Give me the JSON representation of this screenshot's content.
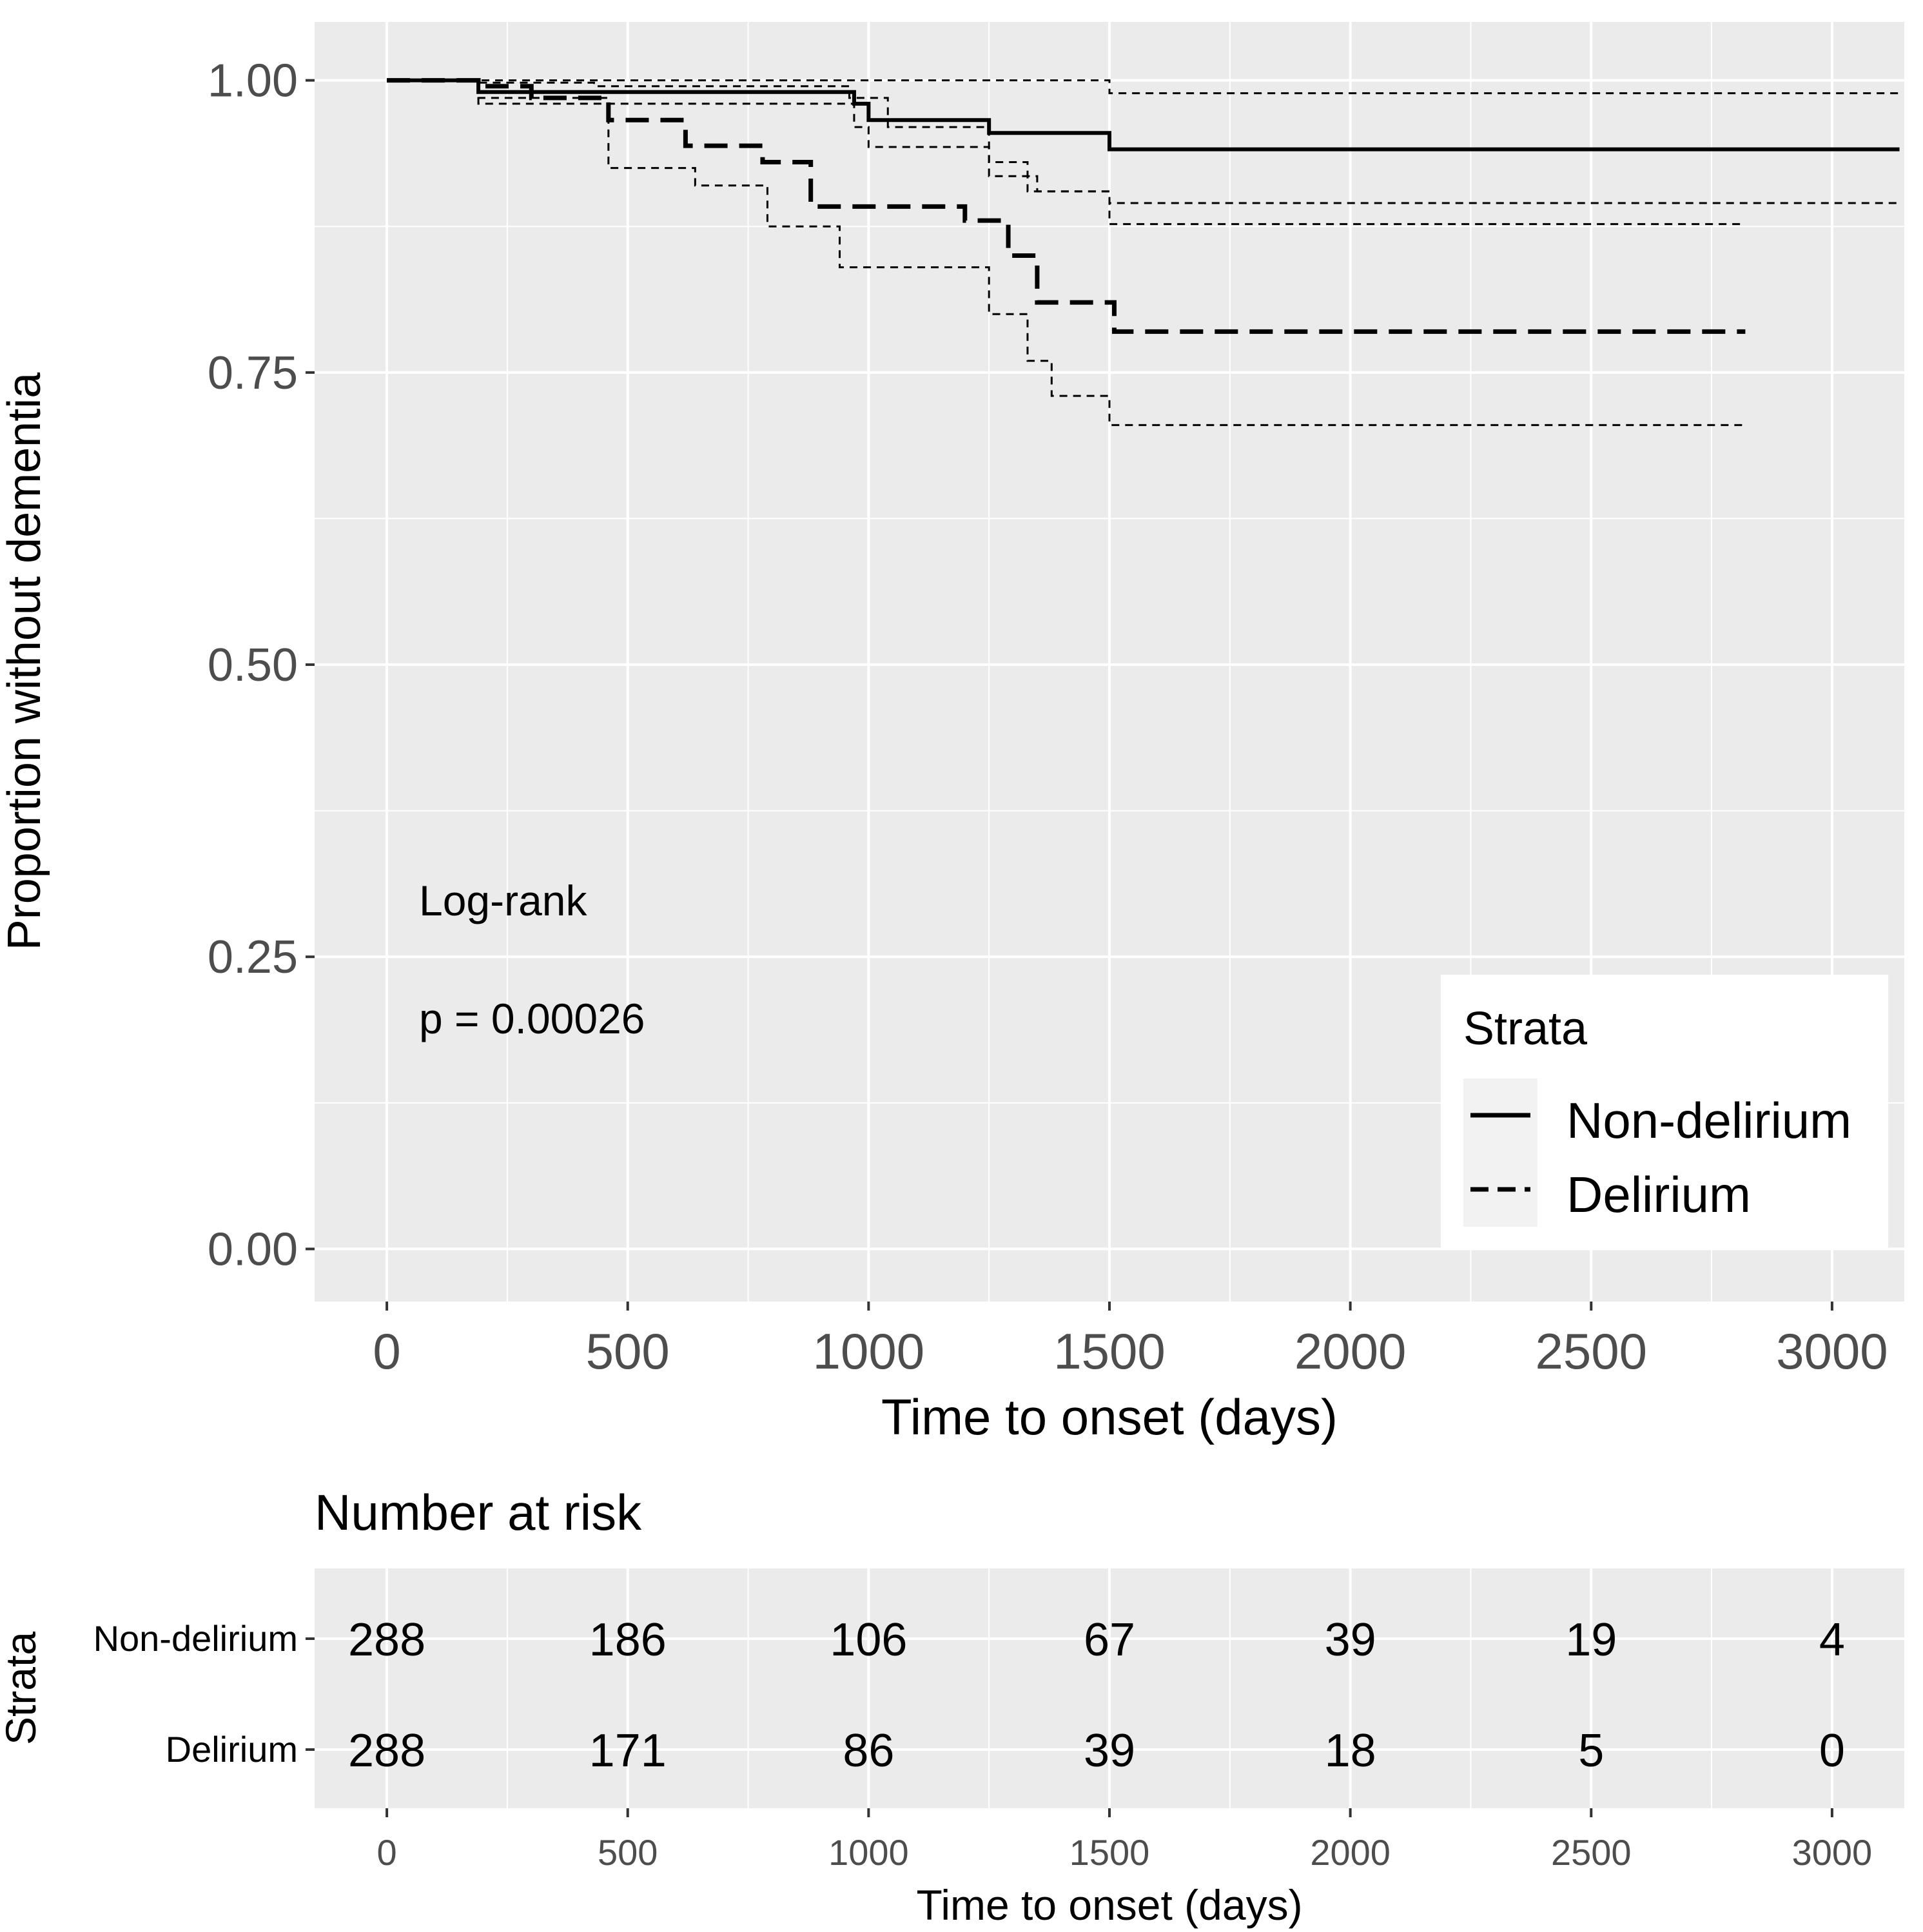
{
  "colors": {
    "panel": "#ebebeb",
    "grid": "#ffffff",
    "line": "#000000",
    "tick_text": "#4d4d4d",
    "legend_bg": "#ffffff"
  },
  "chart_data": [
    {
      "type": "line",
      "subtype": "kaplan-meier",
      "xlabel": "Time to onset (days)",
      "ylabel": "Proportion without dementia",
      "xlim": [
        -150,
        3150
      ],
      "ylim": [
        -0.045,
        1.05
      ],
      "xticks": [
        0,
        500,
        1000,
        1500,
        2000,
        2500,
        3000
      ],
      "xtick_labels": [
        "0",
        "500",
        "1000",
        "1500",
        "2000",
        "2500",
        "3000"
      ],
      "yticks": [
        0,
        0.25,
        0.5,
        0.75,
        1.0
      ],
      "ytick_labels": [
        "0.00",
        "0.25",
        "0.50",
        "0.75",
        "1.00"
      ],
      "annotation": {
        "line1": "Log-rank",
        "line2": "p = 0.00026"
      },
      "legend": {
        "title": "Strata",
        "entries": [
          "Non-delirium",
          "Delirium"
        ],
        "position": "bottom-right"
      },
      "series": [
        {
          "name": "Non-delirium",
          "style": "solid",
          "role": "estimate",
          "x": [
            0,
            190,
            970,
            1000,
            1250,
            1500,
            3140
          ],
          "y": [
            1.0,
            0.99,
            0.98,
            0.966,
            0.955,
            0.941,
            0.941
          ]
        },
        {
          "name": "Non-delirium upper CI",
          "style": "dotted",
          "role": "ci",
          "x": [
            0,
            200,
            1500,
            3140
          ],
          "y": [
            1.0,
            1.0,
            0.989,
            0.989
          ]
        },
        {
          "name": "Non-delirium lower CI",
          "style": "dotted",
          "role": "ci",
          "x": [
            0,
            190,
            970,
            1000,
            1250,
            1350,
            1500,
            3140
          ],
          "y": [
            1.0,
            0.98,
            0.96,
            0.943,
            0.918,
            0.905,
            0.895,
            0.895
          ]
        },
        {
          "name": "Delirium",
          "style": "dashed",
          "role": "estimate",
          "x": [
            0,
            190,
            300,
            460,
            620,
            780,
            880,
            1200,
            1290,
            1350,
            1510,
            2820
          ],
          "y": [
            1.0,
            0.995,
            0.985,
            0.966,
            0.944,
            0.93,
            0.892,
            0.88,
            0.85,
            0.81,
            0.785,
            0.785
          ]
        },
        {
          "name": "Delirium upper CI",
          "style": "dotted",
          "role": "ci",
          "x": [
            0,
            190,
            430,
            960,
            1040,
            1250,
            1330,
            1500,
            2820
          ],
          "y": [
            1.0,
            0.998,
            0.995,
            0.985,
            0.96,
            0.93,
            0.905,
            0.877,
            0.877
          ]
        },
        {
          "name": "Delirium lower CI",
          "style": "dotted",
          "role": "ci",
          "x": [
            0,
            190,
            460,
            640,
            790,
            940,
            1250,
            1330,
            1380,
            1500,
            2820
          ],
          "y": [
            1.0,
            0.985,
            0.925,
            0.91,
            0.875,
            0.84,
            0.8,
            0.76,
            0.73,
            0.705,
            0.705
          ]
        }
      ]
    },
    {
      "type": "table",
      "title": "Number at risk",
      "ylabel": "Strata",
      "xlabel": "Time to onset (days)",
      "times": [
        0,
        500,
        1000,
        1500,
        2000,
        2500,
        3000
      ],
      "time_labels": [
        "0",
        "500",
        "1000",
        "1500",
        "2000",
        "2500",
        "3000"
      ],
      "rows": [
        {
          "label": "Non-delirium",
          "values": [
            "288",
            "186",
            "106",
            "67",
            "39",
            "19",
            "4"
          ]
        },
        {
          "label": "Delirium",
          "values": [
            "288",
            "171",
            "86",
            "39",
            "18",
            "5",
            "0"
          ]
        }
      ]
    }
  ]
}
